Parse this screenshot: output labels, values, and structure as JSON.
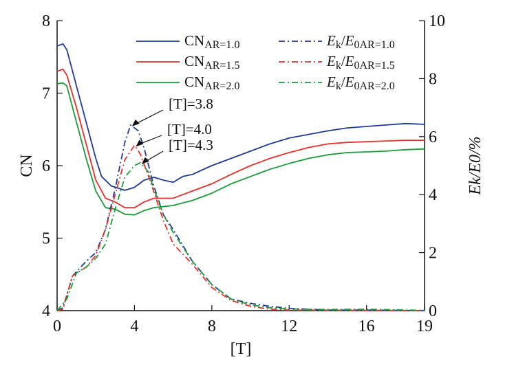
{
  "chart_data": {
    "type": "line",
    "title": "",
    "xlabel": "[T]",
    "ylabel": "CN",
    "y2label": "Ek/E0/%",
    "xlim": [
      0,
      19
    ],
    "ylim": [
      4,
      8
    ],
    "y2lim": [
      0,
      10
    ],
    "xticks": [
      "0",
      "4",
      "8",
      "12",
      "16",
      "19"
    ],
    "yticks": [
      "4",
      "5",
      "6",
      "7",
      "8"
    ],
    "y2ticks": [
      "0",
      "2",
      "4",
      "6",
      "8",
      "10"
    ],
    "legend_position": "top-right",
    "colors": {
      "ar10": "#1f3a93",
      "ar15": "#e5312b",
      "ar20": "#1a9a3a"
    },
    "series": [
      {
        "name": "CN AR=1.0",
        "label_main": "CN",
        "label_sub": "AR=1.0",
        "axis": "left",
        "style": "solid",
        "color": "#1f3a93",
        "x": [
          0,
          0.3,
          0.5,
          1,
          1.5,
          2,
          2.3,
          2.8,
          3.5,
          4,
          4.5,
          5,
          5.5,
          6,
          6.5,
          7,
          8,
          9,
          10,
          11,
          12,
          13,
          14,
          15,
          16,
          17,
          18,
          19
        ],
        "y": [
          7.65,
          7.68,
          7.6,
          7.1,
          6.6,
          6.1,
          5.85,
          5.72,
          5.66,
          5.7,
          5.8,
          5.84,
          5.8,
          5.77,
          5.85,
          5.88,
          6.0,
          6.1,
          6.2,
          6.3,
          6.38,
          6.43,
          6.48,
          6.52,
          6.54,
          6.56,
          6.58,
          6.57
        ]
      },
      {
        "name": "CN AR=1.5",
        "label_main": "CN",
        "label_sub": "AR=1.5",
        "axis": "left",
        "style": "solid",
        "color": "#e5312b",
        "x": [
          0,
          0.3,
          0.5,
          1,
          1.5,
          2,
          2.5,
          3,
          3.5,
          4,
          4.5,
          5,
          6,
          7,
          8,
          9,
          10,
          11,
          12,
          13,
          14,
          15,
          16,
          17,
          18,
          19
        ],
        "y": [
          7.3,
          7.33,
          7.25,
          6.8,
          6.3,
          5.8,
          5.55,
          5.5,
          5.42,
          5.42,
          5.5,
          5.55,
          5.55,
          5.65,
          5.75,
          5.88,
          6.0,
          6.1,
          6.18,
          6.25,
          6.3,
          6.32,
          6.33,
          6.34,
          6.35,
          6.35
        ]
      },
      {
        "name": "CN AR=2.0",
        "label_main": "CN",
        "label_sub": "AR=2.0",
        "axis": "left",
        "style": "solid",
        "color": "#1a9a3a",
        "x": [
          0,
          0.3,
          0.5,
          1,
          1.5,
          2,
          2.5,
          3,
          3.5,
          4,
          4.5,
          5,
          6,
          7,
          8,
          9,
          10,
          11,
          12,
          13,
          14,
          15,
          16,
          17,
          18,
          19
        ],
        "y": [
          7.13,
          7.14,
          7.1,
          6.6,
          6.1,
          5.65,
          5.42,
          5.4,
          5.33,
          5.32,
          5.38,
          5.42,
          5.45,
          5.52,
          5.62,
          5.75,
          5.85,
          5.95,
          6.03,
          6.1,
          6.15,
          6.18,
          6.19,
          6.2,
          6.22,
          6.23
        ]
      },
      {
        "name": "Ek/E0 AR=1.0",
        "label_main": "Ek/E0",
        "label_sub": "AR=1.0",
        "axis": "right",
        "style": "dashdot",
        "color": "#1f3a93",
        "x": [
          0,
          0.3,
          0.8,
          1.5,
          2,
          2.5,
          3,
          3.5,
          3.8,
          4.2,
          4.5,
          5,
          5.5,
          6,
          7,
          8,
          9,
          10,
          11,
          12,
          13,
          14,
          16,
          19
        ],
        "y": [
          0,
          0.1,
          1.2,
          1.7,
          2.0,
          2.8,
          4.2,
          5.8,
          6.4,
          6.2,
          5.6,
          4.3,
          3.3,
          2.8,
          1.7,
          0.9,
          0.4,
          0.25,
          0.15,
          0.08,
          0.05,
          0.02,
          0.02,
          0
        ]
      },
      {
        "name": "Ek/E0 AR=1.5",
        "label_main": "Ek/E0",
        "label_sub": "AR=1.5",
        "axis": "right",
        "style": "dashdot",
        "color": "#e5312b",
        "x": [
          0,
          0.3,
          0.8,
          1.5,
          2,
          2.5,
          3,
          3.5,
          4,
          4.3,
          4.8,
          5.5,
          6,
          7,
          8,
          9,
          10,
          11,
          12,
          19
        ],
        "y": [
          0,
          0.05,
          1.2,
          1.5,
          1.9,
          2.8,
          4.0,
          5.2,
          5.7,
          5.4,
          4.5,
          3.1,
          2.3,
          1.6,
          0.8,
          0.35,
          0.15,
          0.05,
          0.02,
          0
        ]
      },
      {
        "name": "Ek/E0 AR=2.0",
        "label_main": "Ek/E0",
        "label_sub": "AR=2.0",
        "axis": "right",
        "style": "dashdot",
        "color": "#1a9a3a",
        "x": [
          0,
          0.5,
          1,
          1.5,
          2,
          2.5,
          3,
          3.5,
          4,
          4.3,
          4.7,
          5,
          5.5,
          6,
          7,
          8,
          9,
          10,
          11,
          12,
          14,
          16,
          19
        ],
        "y": [
          0,
          0.4,
          1.3,
          1.5,
          1.8,
          2.3,
          3.5,
          4.6,
          5.0,
          5.1,
          4.8,
          4.2,
          3.3,
          2.7,
          1.7,
          0.9,
          0.4,
          0.2,
          0.1,
          0.06,
          0.04,
          0.05,
          0.01
        ]
      }
    ],
    "annotations": [
      {
        "text": "[T]=3.8",
        "x": 3.8,
        "y2": 6.4
      },
      {
        "text": "[T]=4.0",
        "x": 4.0,
        "y2": 5.7
      },
      {
        "text": "[T]=4.3",
        "x": 4.3,
        "y2": 5.1
      }
    ]
  }
}
